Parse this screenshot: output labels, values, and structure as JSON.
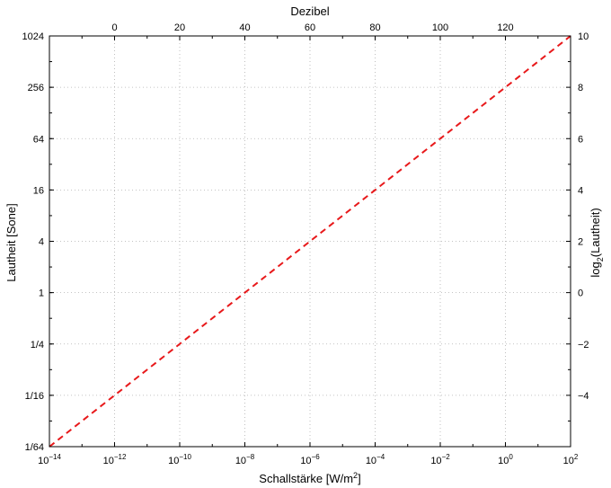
{
  "chart_data": {
    "type": "line",
    "xlabel": "Schallstärke [W/m",
    "xlabel_sup": "2",
    "xlabel_end": "]",
    "x_scale": "log",
    "xlim": [
      1e-14,
      100
    ],
    "x_ticks": [
      {
        "value": 1e-14,
        "base": "10",
        "exp": "−14"
      },
      {
        "value": 1e-12,
        "base": "10",
        "exp": "−12"
      },
      {
        "value": 1e-10,
        "base": "10",
        "exp": "−10"
      },
      {
        "value": 1e-08,
        "base": "10",
        "exp": "−8"
      },
      {
        "value": 1e-06,
        "base": "10",
        "exp": "−6"
      },
      {
        "value": 0.0001,
        "base": "10",
        "exp": "−4"
      },
      {
        "value": 0.01,
        "base": "10",
        "exp": "−2"
      },
      {
        "value": 1,
        "base": "10",
        "exp": "0"
      },
      {
        "value": 100,
        "base": "10",
        "exp": "2"
      }
    ],
    "x2label": "Dezibel",
    "x2lim": [
      -20,
      140
    ],
    "x2_ticks": [
      "0",
      "20",
      "40",
      "60",
      "80",
      "100",
      "120"
    ],
    "ylabel": "Lautheit [Sone]",
    "y_scale": "log2",
    "ylim": [
      0.015625,
      1024
    ],
    "y_ticks": [
      {
        "value": 0.015625,
        "label": "1/64"
      },
      {
        "value": 0.0625,
        "label": "1/16"
      },
      {
        "value": 0.25,
        "label": "1/4"
      },
      {
        "value": 1,
        "label": "1"
      },
      {
        "value": 4,
        "label": "4"
      },
      {
        "value": 16,
        "label": "16"
      },
      {
        "value": 64,
        "label": "64"
      },
      {
        "value": 256,
        "label": "256"
      },
      {
        "value": 1024,
        "label": "1024"
      }
    ],
    "y2label_pre": "log",
    "y2label_sub": "2",
    "y2label_post": "(Lautheit)",
    "y2lim": [
      -6,
      10
    ],
    "y2_ticks": [
      "−4",
      "−2",
      "0",
      "2",
      "4",
      "6",
      "8",
      "10"
    ],
    "grid": true,
    "series": [
      {
        "x": [
          1e-14,
          100
        ],
        "y": [
          0.015625,
          1024
        ],
        "color": "#e8191b",
        "style": "dashed"
      }
    ]
  }
}
